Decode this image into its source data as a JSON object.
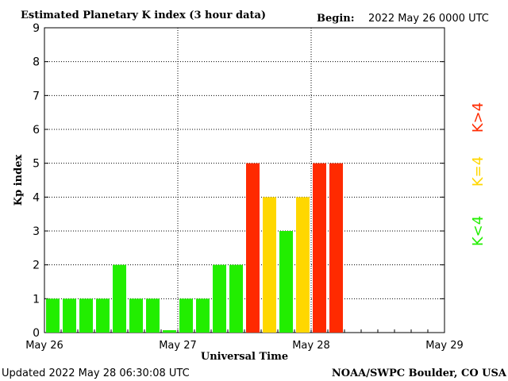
{
  "header": {
    "title": "Estimated Planetary K index (3 hour data)",
    "begin_label": "Begin:",
    "begin_value": "2022 May 26 0000 UTC"
  },
  "footer": {
    "updated": "Updated 2022 May 28 06:30:08 UTC",
    "source": "NOAA/SWPC Boulder, CO USA"
  },
  "legend": {
    "gt4": "K>4",
    "eq4": "K=4",
    "lt4": "K<4"
  },
  "colors": {
    "lt4": "#22ee00",
    "eq4": "#ffd700",
    "gt4": "#ff2a00",
    "grid": "#000000"
  },
  "chart_data": {
    "type": "bar",
    "title": "Estimated Planetary K index (3 hour data)",
    "xlabel": "Universal Time",
    "ylabel": "Kp index",
    "ylim": [
      0,
      9
    ],
    "yticks": [
      0,
      1,
      2,
      3,
      4,
      5,
      6,
      7,
      8,
      9
    ],
    "xticks": [
      "May 26",
      "May 27",
      "May 28",
      "May 29"
    ],
    "slots_per_day": 8,
    "days": 3,
    "grid": true,
    "values": [
      1,
      1,
      1,
      1,
      2,
      1,
      1,
      0.07,
      1,
      1,
      2,
      2,
      5,
      4,
      3,
      4,
      5,
      5
    ]
  }
}
